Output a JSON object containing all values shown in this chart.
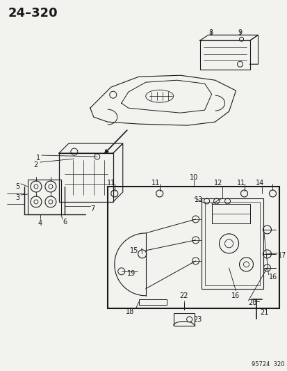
{
  "title": "24–320",
  "footer": "95724  320",
  "bg_color": "#f2f2ee",
  "line_color": "#1a1a1a",
  "label_color": "#1a1a1a",
  "font_size_title": 15,
  "font_size_labels": 7,
  "font_size_footer": 6
}
